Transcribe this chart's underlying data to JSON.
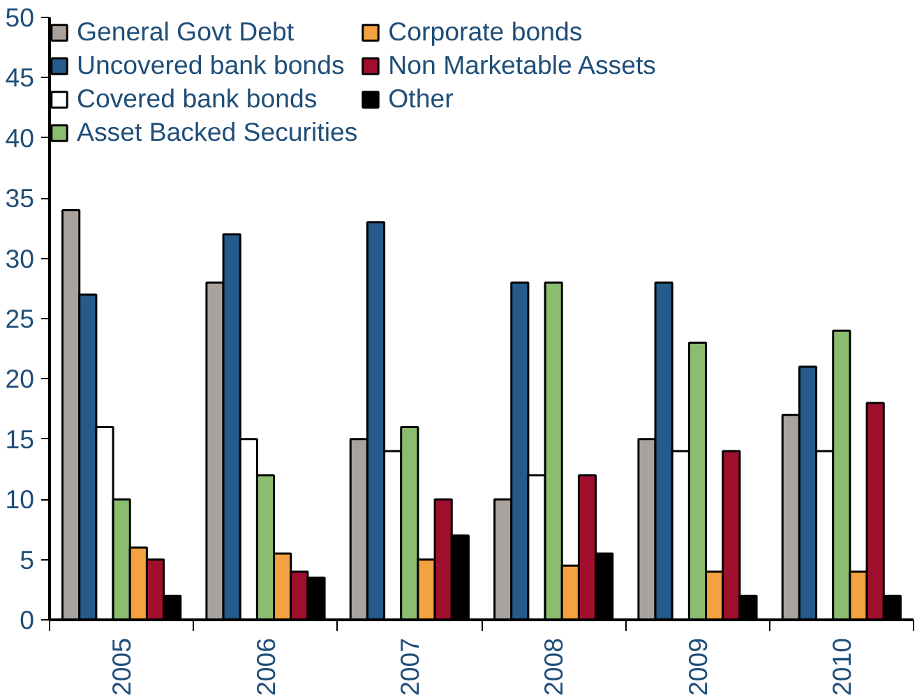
{
  "chart_data": {
    "type": "bar",
    "categories": [
      "2005",
      "2006",
      "2007",
      "2008",
      "2009",
      "2010"
    ],
    "series": [
      {
        "name": "General Govt Debt",
        "color": "#aaa39d",
        "values": [
          34,
          28,
          15,
          10,
          15,
          17
        ]
      },
      {
        "name": "Uncovered bank bonds",
        "color": "#245b8a",
        "values": [
          27,
          32,
          33,
          28,
          28,
          21
        ]
      },
      {
        "name": "Covered bank bonds",
        "color": "#ffffff",
        "values": [
          16,
          15,
          14,
          12,
          14,
          14
        ]
      },
      {
        "name": "Asset Backed Securities",
        "color": "#8bbd6f",
        "values": [
          10,
          12,
          16,
          28,
          23,
          24
        ]
      },
      {
        "name": "Corporate bonds",
        "color": "#f4a13f",
        "values": [
          6,
          5.5,
          5,
          4.5,
          4,
          4
        ]
      },
      {
        "name": "Non Marketable Assets",
        "color": "#a0102e",
        "values": [
          5,
          4,
          10,
          12,
          14,
          18
        ]
      },
      {
        "name": "Other",
        "color": "#000000",
        "values": [
          2,
          3.5,
          7,
          5.5,
          2,
          2
        ]
      }
    ],
    "ylim": [
      0,
      50
    ],
    "yticks": [
      0,
      5,
      10,
      15,
      20,
      25,
      30,
      35,
      40,
      45,
      50
    ],
    "grid": false,
    "legend": "top left"
  }
}
